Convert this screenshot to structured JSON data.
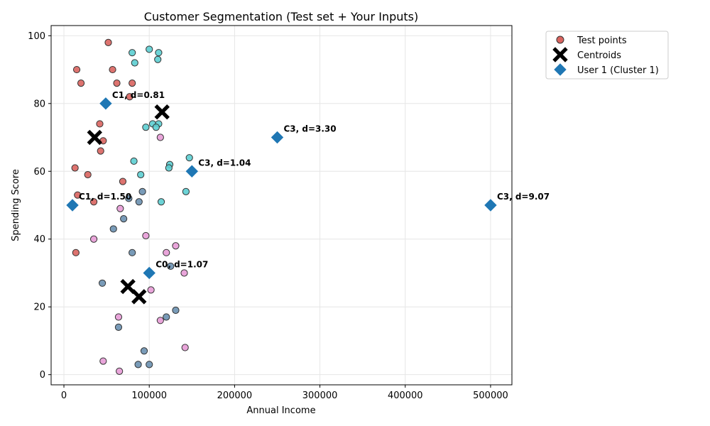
{
  "chart_data": {
    "type": "scatter",
    "title": "Customer Segmentation (Test set + Your Inputs)",
    "xlabel": "Annual Income",
    "ylabel": "Spending Score",
    "xlim": [
      -15000,
      525000
    ],
    "ylim": [
      -3,
      103
    ],
    "xticks": [
      0,
      100000,
      200000,
      300000,
      400000,
      500000
    ],
    "yticks": [
      0,
      20,
      40,
      60,
      80,
      100
    ],
    "grid": true,
    "legend_position": "outside-top-right",
    "legend": [
      {
        "label": "Test points",
        "marker": "circle",
        "color": "#d9645f"
      },
      {
        "label": "Centroids",
        "marker": "x",
        "color": "#000000"
      },
      {
        "label": "User 1 (Cluster 1)",
        "marker": "diamond",
        "color": "#1f77b4"
      }
    ],
    "cluster_colors": {
      "0": "#6a90b0",
      "1": "#d9645f",
      "2": "#e79bd6",
      "3": "#5cced1"
    },
    "test_points": [
      {
        "x": 52000,
        "y": 98,
        "c": 1
      },
      {
        "x": 15000,
        "y": 90,
        "c": 1
      },
      {
        "x": 57000,
        "y": 90,
        "c": 1
      },
      {
        "x": 20000,
        "y": 86,
        "c": 1
      },
      {
        "x": 62000,
        "y": 86,
        "c": 1
      },
      {
        "x": 80000,
        "y": 86,
        "c": 1
      },
      {
        "x": 77000,
        "y": 82,
        "c": 1
      },
      {
        "x": 42000,
        "y": 74,
        "c": 1
      },
      {
        "x": 46000,
        "y": 69,
        "c": 1
      },
      {
        "x": 43000,
        "y": 66,
        "c": 1
      },
      {
        "x": 13000,
        "y": 61,
        "c": 1
      },
      {
        "x": 28000,
        "y": 59,
        "c": 1
      },
      {
        "x": 69000,
        "y": 57,
        "c": 1
      },
      {
        "x": 16000,
        "y": 53,
        "c": 1
      },
      {
        "x": 35000,
        "y": 51,
        "c": 1
      },
      {
        "x": 14000,
        "y": 36,
        "c": 1
      },
      {
        "x": 80000,
        "y": 95,
        "c": 3
      },
      {
        "x": 100000,
        "y": 96,
        "c": 3
      },
      {
        "x": 111000,
        "y": 95,
        "c": 3
      },
      {
        "x": 83000,
        "y": 92,
        "c": 3
      },
      {
        "x": 110000,
        "y": 93,
        "c": 3
      },
      {
        "x": 104000,
        "y": 74,
        "c": 3
      },
      {
        "x": 111000,
        "y": 74,
        "c": 3
      },
      {
        "x": 96000,
        "y": 73,
        "c": 3
      },
      {
        "x": 108000,
        "y": 73,
        "c": 3
      },
      {
        "x": 82000,
        "y": 63,
        "c": 3
      },
      {
        "x": 147000,
        "y": 64,
        "c": 3
      },
      {
        "x": 124000,
        "y": 62,
        "c": 3
      },
      {
        "x": 123000,
        "y": 61,
        "c": 3
      },
      {
        "x": 90000,
        "y": 59,
        "c": 3
      },
      {
        "x": 143000,
        "y": 54,
        "c": 3
      },
      {
        "x": 114000,
        "y": 51,
        "c": 3
      },
      {
        "x": 92000,
        "y": 54,
        "c": 0
      },
      {
        "x": 76000,
        "y": 52,
        "c": 0
      },
      {
        "x": 88000,
        "y": 51,
        "c": 0
      },
      {
        "x": 70000,
        "y": 46,
        "c": 0
      },
      {
        "x": 58000,
        "y": 43,
        "c": 0
      },
      {
        "x": 80000,
        "y": 36,
        "c": 0
      },
      {
        "x": 125000,
        "y": 32,
        "c": 0
      },
      {
        "x": 45000,
        "y": 27,
        "c": 0
      },
      {
        "x": 131000,
        "y": 19,
        "c": 0
      },
      {
        "x": 120000,
        "y": 17,
        "c": 0
      },
      {
        "x": 64000,
        "y": 14,
        "c": 0
      },
      {
        "x": 94000,
        "y": 7,
        "c": 0
      },
      {
        "x": 87000,
        "y": 3,
        "c": 0
      },
      {
        "x": 100000,
        "y": 3,
        "c": 0
      },
      {
        "x": 113000,
        "y": 70,
        "c": 2
      },
      {
        "x": 66000,
        "y": 49,
        "c": 2
      },
      {
        "x": 96000,
        "y": 41,
        "c": 2
      },
      {
        "x": 35000,
        "y": 40,
        "c": 2
      },
      {
        "x": 131000,
        "y": 38,
        "c": 2
      },
      {
        "x": 120000,
        "y": 36,
        "c": 2
      },
      {
        "x": 141000,
        "y": 30,
        "c": 2
      },
      {
        "x": 102000,
        "y": 25,
        "c": 2
      },
      {
        "x": 64000,
        "y": 17,
        "c": 2
      },
      {
        "x": 113000,
        "y": 16,
        "c": 2
      },
      {
        "x": 142000,
        "y": 8,
        "c": 2
      },
      {
        "x": 46000,
        "y": 4,
        "c": 2
      },
      {
        "x": 65000,
        "y": 1,
        "c": 2
      }
    ],
    "centroids": [
      {
        "x": 115000,
        "y": 77.5
      },
      {
        "x": 36000,
        "y": 70
      },
      {
        "x": 75000,
        "y": 26
      },
      {
        "x": 88000,
        "y": 23
      }
    ],
    "user_points": [
      {
        "x": 49000,
        "y": 80,
        "label": "C1, d=0.81"
      },
      {
        "x": 250000,
        "y": 70,
        "label": "C3, d=3.30"
      },
      {
        "x": 150000,
        "y": 60,
        "label": "C3, d=1.04"
      },
      {
        "x": 10000,
        "y": 50,
        "label": "C1, d=1.50"
      },
      {
        "x": 500000,
        "y": 50,
        "label": "C3, d=9.07"
      },
      {
        "x": 100000,
        "y": 30,
        "label": "C0, d=1.07"
      }
    ],
    "colors": {
      "user": "#1f77b4",
      "centroid": "#000000",
      "grid": "#e6e6e6"
    }
  }
}
